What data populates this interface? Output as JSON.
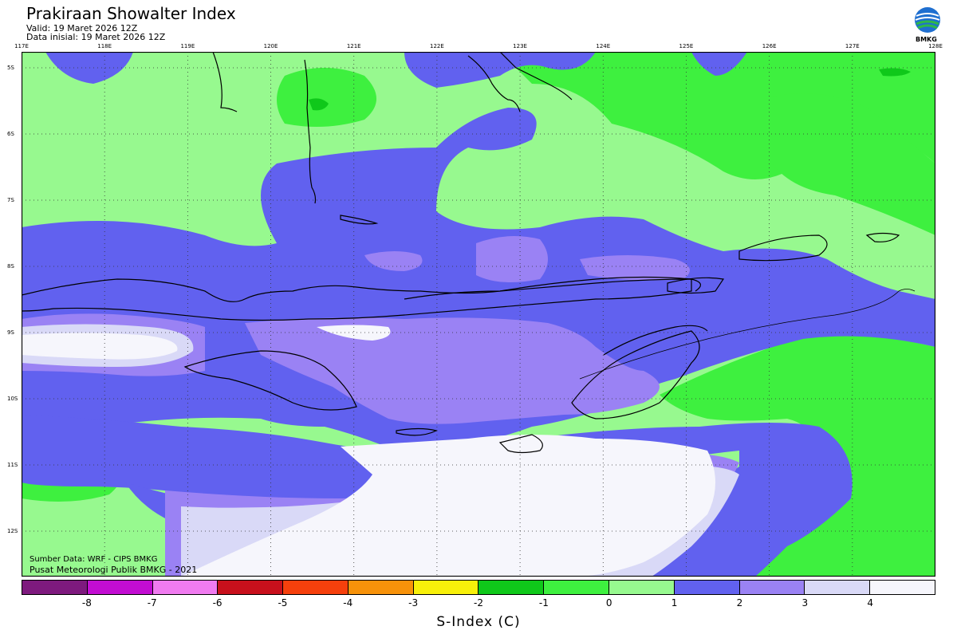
{
  "header": {
    "title": "Prakiraan Showalter Index",
    "valid": "Valid: 19 Maret 2026 12Z",
    "initial": "Data inisial: 19 Maret 2026 12Z",
    "logo_text": "BMKG"
  },
  "axes": {
    "longitudes": [
      "117E",
      "118E",
      "119E",
      "120E",
      "121E",
      "122E",
      "123E",
      "124E",
      "125E",
      "126E",
      "127E",
      "128E"
    ],
    "latitudes": [
      "5S",
      "6S",
      "7S",
      "8S",
      "9S",
      "10S",
      "11S",
      "12S"
    ]
  },
  "credits": {
    "line1": "Sumber Data: WRF - CIPS BMKG",
    "line2": "Pusat Meteorologi Publik BMKG - 2021"
  },
  "colorbar": {
    "colors": [
      "#7e1a7e",
      "#c20dd2",
      "#f07bf0",
      "#c8101c",
      "#f6400c",
      "#f7920a",
      "#f8f00a",
      "#0fc81a",
      "#3ef03f",
      "#97f98f",
      "#6161ef",
      "#9a82f4",
      "#d9d9f7",
      "#f6f6fc"
    ],
    "ticks": [
      "-8",
      "-7",
      "-6",
      "-5",
      "-4",
      "-3",
      "-2",
      "-1",
      "0",
      "1",
      "2",
      "3",
      "4"
    ],
    "label": "S-Index (C)"
  },
  "palette": {
    "light_green": "#97f98f",
    "green": "#3ef03f",
    "dark_green": "#0fc81a",
    "blue": "#6161ef",
    "lavender": "#9a82f4",
    "pale": "#d9d9f7",
    "white": "#f6f6fc",
    "coast": "#000000"
  }
}
